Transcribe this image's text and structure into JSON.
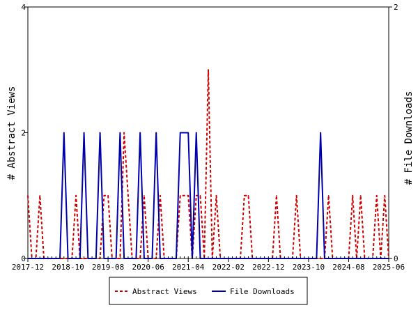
{
  "chart_data": {
    "type": "line",
    "title": "",
    "ylabel_left": "# Abstract Views",
    "ylabel_right": "# File Downloads",
    "ylim_left": [
      0,
      4
    ],
    "ylim_right": [
      0,
      2
    ],
    "yticks_left": [
      "0",
      "2",
      "4"
    ],
    "yticks_right": [
      "0",
      "2"
    ],
    "x_start": "2017-12",
    "x_end": "2025-06",
    "x_tick_labels": [
      "2017-12",
      "2018-10",
      "2019-08",
      "2020-06",
      "2021-04",
      "2022-02",
      "2022-12",
      "2023-10",
      "2024-08",
      "2025-06"
    ],
    "grid": false,
    "legend_position": "bottom",
    "series": [
      {
        "name": "Abstract Views",
        "axis": "left",
        "color": "#cc0000",
        "dash": "dashed",
        "values": [
          [
            "2017-12",
            1
          ],
          [
            "2018-01",
            0
          ],
          [
            "2018-02",
            0
          ],
          [
            "2018-03",
            1
          ],
          [
            "2018-04",
            0
          ],
          [
            "2018-05",
            0
          ],
          [
            "2018-06",
            0
          ],
          [
            "2018-07",
            0
          ],
          [
            "2018-08",
            0
          ],
          [
            "2018-09",
            0
          ],
          [
            "2018-10",
            0
          ],
          [
            "2018-11",
            0
          ],
          [
            "2018-12",
            1
          ],
          [
            "2019-01",
            0
          ],
          [
            "2019-02",
            0
          ],
          [
            "2019-03",
            0
          ],
          [
            "2019-04",
            0
          ],
          [
            "2019-05",
            0
          ],
          [
            "2019-06",
            0
          ],
          [
            "2019-07",
            1
          ],
          [
            "2019-08",
            1
          ],
          [
            "2019-09",
            0
          ],
          [
            "2019-10",
            0
          ],
          [
            "2019-11",
            0
          ],
          [
            "2019-12",
            2
          ],
          [
            "2020-01",
            1
          ],
          [
            "2020-02",
            0
          ],
          [
            "2020-03",
            0
          ],
          [
            "2020-04",
            0
          ],
          [
            "2020-05",
            1
          ],
          [
            "2020-06",
            0
          ],
          [
            "2020-07",
            0
          ],
          [
            "2020-08",
            0
          ],
          [
            "2020-09",
            1
          ],
          [
            "2020-10",
            0
          ],
          [
            "2020-11",
            0
          ],
          [
            "2020-12",
            0
          ],
          [
            "2021-01",
            0
          ],
          [
            "2021-02",
            1
          ],
          [
            "2021-03",
            1
          ],
          [
            "2021-04",
            1
          ],
          [
            "2021-05",
            0
          ],
          [
            "2021-06",
            1
          ],
          [
            "2021-07",
            1
          ],
          [
            "2021-08",
            0
          ],
          [
            "2021-09",
            3
          ],
          [
            "2021-10",
            0
          ],
          [
            "2021-11",
            1
          ],
          [
            "2021-12",
            0
          ],
          [
            "2022-01",
            0
          ],
          [
            "2022-02",
            0
          ],
          [
            "2022-03",
            0
          ],
          [
            "2022-04",
            0
          ],
          [
            "2022-05",
            0
          ],
          [
            "2022-06",
            1
          ],
          [
            "2022-07",
            1
          ],
          [
            "2022-08",
            0
          ],
          [
            "2022-09",
            0
          ],
          [
            "2022-10",
            0
          ],
          [
            "2022-11",
            0
          ],
          [
            "2022-12",
            0
          ],
          [
            "2023-01",
            0
          ],
          [
            "2023-02",
            1
          ],
          [
            "2023-03",
            0
          ],
          [
            "2023-04",
            0
          ],
          [
            "2023-05",
            0
          ],
          [
            "2023-06",
            0
          ],
          [
            "2023-07",
            1
          ],
          [
            "2023-08",
            0
          ],
          [
            "2023-09",
            0
          ],
          [
            "2023-10",
            0
          ],
          [
            "2023-11",
            0
          ],
          [
            "2023-12",
            0
          ],
          [
            "2024-01",
            0
          ],
          [
            "2024-02",
            0
          ],
          [
            "2024-03",
            1
          ],
          [
            "2024-04",
            0
          ],
          [
            "2024-05",
            0
          ],
          [
            "2024-06",
            0
          ],
          [
            "2024-07",
            0
          ],
          [
            "2024-08",
            0
          ],
          [
            "2024-09",
            1
          ],
          [
            "2024-10",
            0
          ],
          [
            "2024-11",
            1
          ],
          [
            "2024-12",
            0
          ],
          [
            "2025-01",
            0
          ],
          [
            "2025-02",
            0
          ],
          [
            "2025-03",
            1
          ],
          [
            "2025-04",
            0
          ],
          [
            "2025-05",
            1
          ],
          [
            "2025-06",
            0
          ]
        ]
      },
      {
        "name": "File Downloads",
        "axis": "right",
        "color": "#0000aa",
        "dash": "solid",
        "values": [
          [
            "2017-12",
            0
          ],
          [
            "2018-01",
            0
          ],
          [
            "2018-02",
            0
          ],
          [
            "2018-03",
            0
          ],
          [
            "2018-04",
            0
          ],
          [
            "2018-05",
            0
          ],
          [
            "2018-06",
            0
          ],
          [
            "2018-07",
            0
          ],
          [
            "2018-08",
            0
          ],
          [
            "2018-09",
            1
          ],
          [
            "2018-10",
            0
          ],
          [
            "2018-11",
            0
          ],
          [
            "2018-12",
            0
          ],
          [
            "2019-01",
            0
          ],
          [
            "2019-02",
            1
          ],
          [
            "2019-03",
            0
          ],
          [
            "2019-04",
            0
          ],
          [
            "2019-05",
            0
          ],
          [
            "2019-06",
            1
          ],
          [
            "2019-07",
            0
          ],
          [
            "2019-08",
            0
          ],
          [
            "2019-09",
            0
          ],
          [
            "2019-10",
            0
          ],
          [
            "2019-11",
            1
          ],
          [
            "2019-12",
            0
          ],
          [
            "2020-01",
            0
          ],
          [
            "2020-02",
            0
          ],
          [
            "2020-03",
            0
          ],
          [
            "2020-04",
            1
          ],
          [
            "2020-05",
            0
          ],
          [
            "2020-06",
            0
          ],
          [
            "2020-07",
            0
          ],
          [
            "2020-08",
            1
          ],
          [
            "2020-09",
            0
          ],
          [
            "2020-10",
            0
          ],
          [
            "2020-11",
            0
          ],
          [
            "2020-12",
            0
          ],
          [
            "2021-01",
            0
          ],
          [
            "2021-02",
            1
          ],
          [
            "2021-03",
            1
          ],
          [
            "2021-04",
            1
          ],
          [
            "2021-05",
            0
          ],
          [
            "2021-06",
            1
          ],
          [
            "2021-07",
            0
          ],
          [
            "2021-08",
            0
          ],
          [
            "2021-09",
            0
          ],
          [
            "2021-10",
            0
          ],
          [
            "2021-11",
            0
          ],
          [
            "2021-12",
            0
          ],
          [
            "2022-01",
            0
          ],
          [
            "2022-02",
            0
          ],
          [
            "2022-03",
            0
          ],
          [
            "2022-04",
            0
          ],
          [
            "2022-05",
            0
          ],
          [
            "2022-06",
            0
          ],
          [
            "2022-07",
            0
          ],
          [
            "2022-08",
            0
          ],
          [
            "2022-09",
            0
          ],
          [
            "2022-10",
            0
          ],
          [
            "2022-11",
            0
          ],
          [
            "2022-12",
            0
          ],
          [
            "2023-01",
            0
          ],
          [
            "2023-02",
            0
          ],
          [
            "2023-03",
            0
          ],
          [
            "2023-04",
            0
          ],
          [
            "2023-05",
            0
          ],
          [
            "2023-06",
            0
          ],
          [
            "2023-07",
            0
          ],
          [
            "2023-08",
            0
          ],
          [
            "2023-09",
            0
          ],
          [
            "2023-10",
            0
          ],
          [
            "2023-11",
            0
          ],
          [
            "2023-12",
            0
          ],
          [
            "2024-01",
            1
          ],
          [
            "2024-02",
            0
          ],
          [
            "2024-03",
            0
          ],
          [
            "2024-04",
            0
          ],
          [
            "2024-05",
            0
          ],
          [
            "2024-06",
            0
          ],
          [
            "2024-07",
            0
          ],
          [
            "2024-08",
            0
          ],
          [
            "2024-09",
            0
          ],
          [
            "2024-10",
            0
          ],
          [
            "2024-11",
            0
          ],
          [
            "2024-12",
            0
          ],
          [
            "2025-01",
            0
          ],
          [
            "2025-02",
            0
          ],
          [
            "2025-03",
            0
          ],
          [
            "2025-04",
            0
          ],
          [
            "2025-05",
            0
          ],
          [
            "2025-06",
            0
          ]
        ]
      }
    ]
  }
}
